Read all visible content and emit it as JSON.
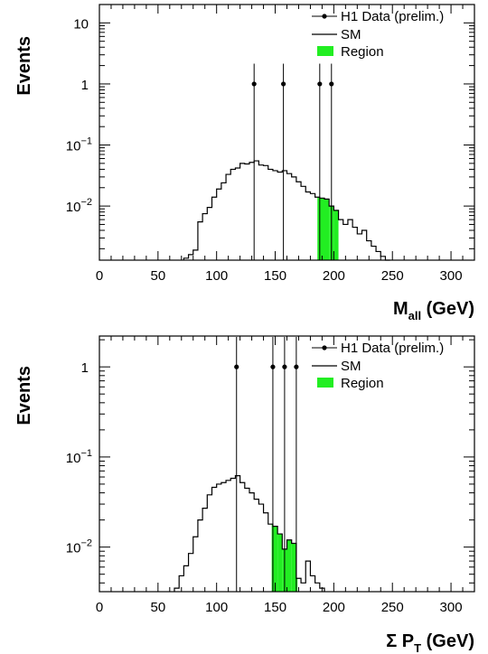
{
  "chart_data": [
    {
      "type": "histogram",
      "ylabel": "Events",
      "xlabel_main": "M",
      "xlabel_sub": "all",
      "xlabel_unit": "(GeV)",
      "xlim": [
        0,
        320
      ],
      "ylim": [
        0.0013,
        20
      ],
      "log_y": true,
      "xticks": [
        "0",
        "50",
        "100",
        "150",
        "200",
        "250",
        "300"
      ],
      "ytick_labels": [
        {
          "value": 10,
          "base": "10",
          "exp": ""
        },
        {
          "value": 1,
          "base": "1",
          "exp": ""
        },
        {
          "value": 0.1,
          "base": "10",
          "exp": "−1"
        },
        {
          "value": 0.01,
          "base": "10",
          "exp": "−2"
        }
      ],
      "legend": {
        "position": "top-right",
        "data": "H1 Data (prelim.)",
        "sm": "SM",
        "region": "Region"
      },
      "colors": {
        "region": "#22ee22",
        "line": "#000000"
      },
      "data_points": [
        {
          "x": 132,
          "y": 1
        },
        {
          "x": 157,
          "y": 1
        },
        {
          "x": 188,
          "y": 1
        },
        {
          "x": 198,
          "y": 1
        }
      ],
      "sm_bins": {
        "edges": [
          72,
          76,
          80,
          84,
          88,
          92,
          96,
          100,
          104,
          108,
          112,
          116,
          120,
          124,
          128,
          132,
          136,
          140,
          144,
          148,
          152,
          156,
          160,
          164,
          168,
          172,
          176,
          180,
          184,
          188,
          192,
          196,
          200,
          204,
          208,
          212,
          216,
          220,
          224,
          228,
          232,
          236,
          240,
          244,
          248
        ],
        "values": [
          0.0014,
          0.0016,
          0.0019,
          0.0055,
          0.0075,
          0.0095,
          0.014,
          0.019,
          0.024,
          0.033,
          0.04,
          0.042,
          0.05,
          0.049,
          0.052,
          0.055,
          0.047,
          0.046,
          0.04,
          0.038,
          0.036,
          0.038,
          0.034,
          0.03,
          0.025,
          0.021,
          0.017,
          0.016,
          0.014,
          0.0135,
          0.013,
          0.01,
          0.0085,
          0.006,
          0.005,
          0.006,
          0.0045,
          0.0035,
          0.004,
          0.0027,
          0.0022,
          0.0018,
          0.0015,
          0.0013
        ]
      },
      "region": {
        "xmin": 186,
        "xmax": 204
      }
    },
    {
      "type": "histogram",
      "ylabel": "Events",
      "xlabel_main": "Σ P",
      "xlabel_sub": "T",
      "xlabel_unit": "(GeV)",
      "xlim": [
        0,
        320
      ],
      "ylim": [
        0.0032,
        2.2
      ],
      "log_y": true,
      "xticks": [
        "0",
        "50",
        "100",
        "150",
        "200",
        "250",
        "300"
      ],
      "ytick_labels": [
        {
          "value": 1,
          "base": "1",
          "exp": ""
        },
        {
          "value": 0.1,
          "base": "10",
          "exp": "−1"
        },
        {
          "value": 0.01,
          "base": "10",
          "exp": "−2"
        }
      ],
      "legend": {
        "position": "top-right",
        "data": "H1 Data (prelim.)",
        "sm": "SM",
        "region": "Region"
      },
      "colors": {
        "region": "#22ee22",
        "line": "#000000"
      },
      "data_points": [
        {
          "x": 117,
          "y": 1
        },
        {
          "x": 148,
          "y": 1
        },
        {
          "x": 158,
          "y": 1
        },
        {
          "x": 168,
          "y": 1
        }
      ],
      "sm_bins": {
        "edges": [
          64,
          68,
          72,
          76,
          80,
          84,
          88,
          92,
          96,
          100,
          104,
          108,
          112,
          116,
          120,
          124,
          128,
          132,
          136,
          140,
          144,
          148,
          152,
          156,
          160,
          164,
          168,
          172,
          176,
          180,
          184,
          188,
          192
        ],
        "values": [
          0.0035,
          0.0048,
          0.0062,
          0.0085,
          0.013,
          0.02,
          0.027,
          0.038,
          0.046,
          0.05,
          0.052,
          0.055,
          0.058,
          0.062,
          0.052,
          0.045,
          0.04,
          0.034,
          0.03,
          0.024,
          0.018,
          0.017,
          0.014,
          0.0095,
          0.012,
          0.011,
          0.0045,
          0.004,
          0.007,
          0.0048,
          0.004,
          0.0035
        ]
      },
      "region": {
        "xmin": 147,
        "xmax": 169
      }
    }
  ]
}
